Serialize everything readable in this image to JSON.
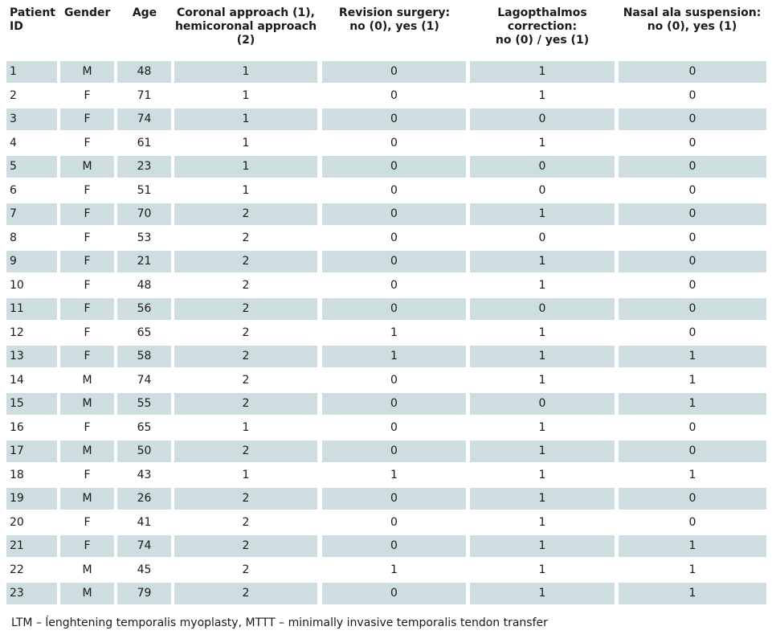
{
  "table": {
    "headers": [
      "Patient\nID",
      "Gender",
      "Age",
      "Coronal approach (1),\nhemicoronal approach\n(2)",
      "Revision surgery:\nno (0), yes (1)",
      "Lagopthalmos\ncorrection:\nno (0) / yes (1)",
      "Nasal ala suspension:\nno (0), yes (1)"
    ],
    "rows": [
      [
        "1",
        "M",
        "48",
        "1",
        "0",
        "1",
        "0"
      ],
      [
        "2",
        "F",
        "71",
        "1",
        "0",
        "1",
        "0"
      ],
      [
        "3",
        "F",
        "74",
        "1",
        "0",
        "0",
        "0"
      ],
      [
        "4",
        "F",
        "61",
        "1",
        "0",
        "1",
        "0"
      ],
      [
        "5",
        "M",
        "23",
        "1",
        "0",
        "0",
        "0"
      ],
      [
        "6",
        "F",
        "51",
        "1",
        "0",
        "0",
        "0"
      ],
      [
        "7",
        "F",
        "70",
        "2",
        "0",
        "1",
        "0"
      ],
      [
        "8",
        "F",
        "53",
        "2",
        "0",
        "0",
        "0"
      ],
      [
        "9",
        "F",
        "21",
        "2",
        "0",
        "1",
        "0"
      ],
      [
        "10",
        "F",
        "48",
        "2",
        "0",
        "1",
        "0"
      ],
      [
        "11",
        "F",
        "56",
        "2",
        "0",
        "0",
        "0"
      ],
      [
        "12",
        "F",
        "65",
        "2",
        "1",
        "1",
        "0"
      ],
      [
        "13",
        "F",
        "58",
        "2",
        "1",
        "1",
        "1"
      ],
      [
        "14",
        "M",
        "74",
        "2",
        "0",
        "1",
        "1"
      ],
      [
        "15",
        "M",
        "55",
        "2",
        "0",
        "0",
        "1"
      ],
      [
        "16",
        "F",
        "65",
        "1",
        "0",
        "1",
        "0"
      ],
      [
        "17",
        "M",
        "50",
        "2",
        "0",
        "1",
        "0"
      ],
      [
        "18",
        "F",
        "43",
        "1",
        "1",
        "1",
        "1"
      ],
      [
        "19",
        "M",
        "26",
        "2",
        "0",
        "1",
        "0"
      ],
      [
        "20",
        "F",
        "41",
        "2",
        "0",
        "1",
        "0"
      ],
      [
        "21",
        "F",
        "74",
        "2",
        "0",
        "1",
        "1"
      ],
      [
        "22",
        "M",
        "45",
        "2",
        "1",
        "1",
        "1"
      ],
      [
        "23",
        "M",
        "79",
        "2",
        "0",
        "1",
        "1"
      ]
    ]
  },
  "footnote": "LTM – ĺenghtening temporalis myoplasty, MTTT – minimally invasive temporalis tendon transfer",
  "colors": {
    "shade": "#cddde0",
    "text": "#1a1a1a"
  }
}
